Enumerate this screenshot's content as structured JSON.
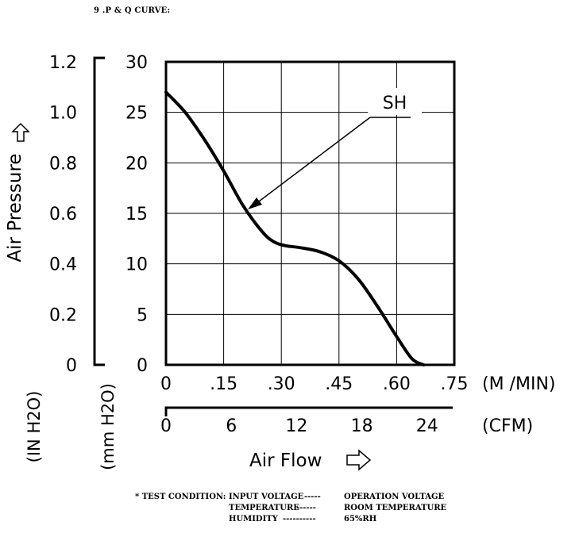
{
  "heading": "9 .P & Q CURVE:",
  "chart_data": {
    "type": "line",
    "xlabel": "Air Flow",
    "ylabel": "Air Pressure",
    "x_primary_ticks": [
      "0",
      ".15",
      ".30",
      ".45",
      ".60",
      ".75"
    ],
    "x_primary_unit": "(M /MIN)",
    "x_secondary_ticks": [
      "0",
      "6",
      "12",
      "18",
      "24"
    ],
    "x_secondary_unit": "(CFM)",
    "y_left_ticks": [
      "0",
      "0.2",
      "0.4",
      "0.6",
      "0.8",
      "1.0",
      "1.2"
    ],
    "y_left_unit": "(IN H2O)",
    "y_right_ticks": [
      "0",
      "5",
      "10",
      "15",
      "20",
      "25",
      "30"
    ],
    "y_right_unit": "(mm H2O)",
    "xlim": [
      0,
      0.75
    ],
    "ylim": [
      0,
      30
    ],
    "grid": true,
    "series": [
      {
        "name": "SH",
        "x": [
          0,
          0.05,
          0.1,
          0.15,
          0.2,
          0.25,
          0.28,
          0.31,
          0.35,
          0.4,
          0.45,
          0.5,
          0.55,
          0.6,
          0.64,
          0.67
        ],
        "y": [
          27.0,
          25.0,
          22.3,
          19.2,
          15.8,
          13.2,
          12.2,
          11.8,
          11.6,
          11.2,
          10.3,
          8.5,
          5.8,
          2.8,
          0.6,
          0.0
        ]
      }
    ]
  },
  "test_condition": {
    "label": "* TEST CONDITION:",
    "rows": [
      {
        "key": "INPUT VOLTAGE",
        "dashes": "-----",
        "value": "OPERATION VOLTAGE"
      },
      {
        "key": "TEMPERATURE",
        "dashes": "------",
        "value": "ROOM TEMPERATURE"
      },
      {
        "key": "HUMIDITY",
        "dashes": "----------",
        "value": "65%RH"
      }
    ]
  }
}
